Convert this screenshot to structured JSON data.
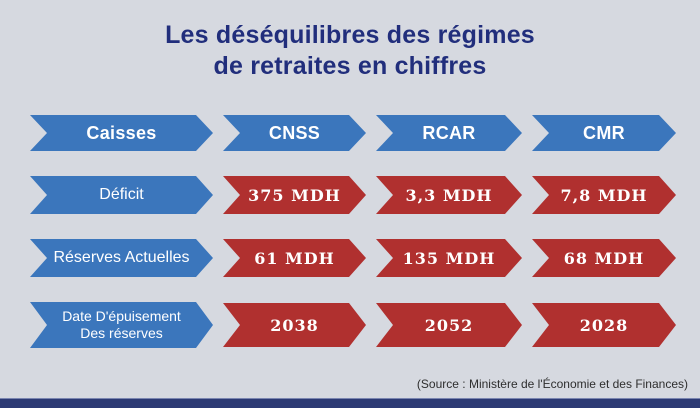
{
  "title": {
    "line1": "Les déséquilibres des régimes",
    "line2": "de retraites en chiffres"
  },
  "table": {
    "header": {
      "label": "Caisses",
      "columns": [
        "CNSS",
        "RCAR",
        "CMR"
      ]
    },
    "rows": [
      {
        "label": "Déficit",
        "values": [
          "375 MDH",
          "3,3 MDH",
          "7,8 MDH"
        ]
      },
      {
        "label": "Réserves Actuelles",
        "values": [
          "61 MDH",
          "135 MDH",
          "68 MDH"
        ]
      },
      {
        "label_line1": "Date D'épuisement",
        "label_line2": "Des réserves",
        "values": [
          "2038",
          "2052",
          "2028"
        ]
      }
    ]
  },
  "source": "(Source : Ministère de l'Économie et des Finances)",
  "colors": {
    "background": "#d6d9e0",
    "blue": "#3b76bc",
    "red": "#b0302f",
    "navy": "#212e7c",
    "bar": "#2c3a74"
  },
  "chart_data": {
    "type": "table",
    "title": "Les déséquilibres des régimes de retraites en chiffres",
    "columns": [
      "Caisses",
      "CNSS",
      "RCAR",
      "CMR"
    ],
    "rows": [
      [
        "Déficit",
        "375 MDH",
        "3,3 MDH",
        "7,8 MDH"
      ],
      [
        "Réserves Actuelles",
        "61 MDH",
        "135 MDH",
        "68 MDH"
      ],
      [
        "Date D'épuisement Des réserves",
        "2038",
        "2052",
        "2028"
      ]
    ],
    "source": "(Source : Ministère de l'Économie et des Finances)"
  }
}
